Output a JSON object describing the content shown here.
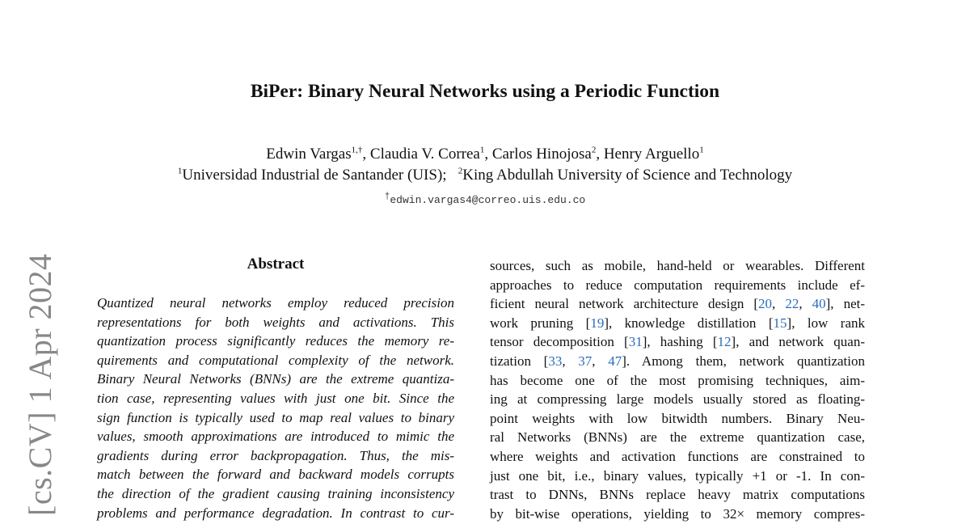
{
  "arxiv_stamp": "[cs.CV]  1 Apr 2024",
  "title": "BiPer: Binary Neural Networks using a Periodic Function",
  "authors": [
    {
      "name": "Edwin Vargas",
      "sup": "1,†"
    },
    {
      "name": "Claudia V. Correa",
      "sup": "1"
    },
    {
      "name": "Carlos Hinojosa",
      "sup": "2"
    },
    {
      "name": "Henry Arguello",
      "sup": "1"
    }
  ],
  "affiliations": [
    {
      "sup": "1",
      "name": "Universidad Industrial de Santander (UIS);"
    },
    {
      "sup": "2",
      "name": "King Abdullah University of Science and Technology"
    }
  ],
  "email": {
    "sup": "†",
    "address": "edwin.vargas4@correo.uis.edu.co"
  },
  "abstract_heading": "Abstract",
  "abstract_lines": [
    "Quantized neural networks employ reduced precision",
    "representations for both weights and activations.  This",
    "quantization process significantly reduces the memory re-",
    "quirements and computational complexity of the network.",
    "Binary Neural Networks (BNNs) are the extreme quantiza-",
    "tion case, representing values with just one bit.  Since the",
    "sign function is typically used to map real values to binary",
    "values, smooth approximations are introduced to mimic the",
    "gradients during error backpropagation.  Thus, the mis-",
    "match between the forward and backward models corrupts",
    "the direction of the gradient causing training inconsistency",
    "problems and performance degradation. In contrast to cur-"
  ],
  "intro_lines": [
    [
      {
        "t": "sources, such as mobile, hand-held or wearables. Different"
      }
    ],
    [
      {
        "t": "approaches to reduce computation requirements include ef-"
      }
    ],
    [
      {
        "t": "ficient neural network architecture design ["
      },
      {
        "t": "20",
        "c": 1
      },
      {
        "t": ", "
      },
      {
        "t": "22",
        "c": 1
      },
      {
        "t": ", "
      },
      {
        "t": "40",
        "c": 1
      },
      {
        "t": "], net-"
      }
    ],
    [
      {
        "t": "work pruning ["
      },
      {
        "t": "19",
        "c": 1
      },
      {
        "t": "], knowledge distillation ["
      },
      {
        "t": "15",
        "c": 1
      },
      {
        "t": "], low rank"
      }
    ],
    [
      {
        "t": "tensor decomposition ["
      },
      {
        "t": "31",
        "c": 1
      },
      {
        "t": "], hashing ["
      },
      {
        "t": "12",
        "c": 1
      },
      {
        "t": "], and network quan-"
      }
    ],
    [
      {
        "t": "tization ["
      },
      {
        "t": "33",
        "c": 1
      },
      {
        "t": ", "
      },
      {
        "t": "37",
        "c": 1
      },
      {
        "t": ", "
      },
      {
        "t": "47",
        "c": 1
      },
      {
        "t": "].  Among them, network quantization"
      }
    ],
    [
      {
        "t": "has become one of the most promising techniques, aim-"
      }
    ],
    [
      {
        "t": "ing at compressing large models usually stored as floating-"
      }
    ],
    [
      {
        "t": "point weights with low bitwidth numbers.  Binary Neu-"
      }
    ],
    [
      {
        "t": "ral Networks (BNNs) are the extreme quantization case,"
      }
    ],
    [
      {
        "t": "where weights and activation functions are constrained to"
      }
    ],
    [
      {
        "t": "just one bit, i.e., binary values, typically +1 or -1.  In con-"
      }
    ],
    [
      {
        "t": "trast to DNNs, BNNs replace heavy matrix computations"
      }
    ],
    [
      {
        "t": "by bit-wise operations, yielding to 32× memory compres-"
      }
    ]
  ],
  "citation_color": "#2a6ebb"
}
